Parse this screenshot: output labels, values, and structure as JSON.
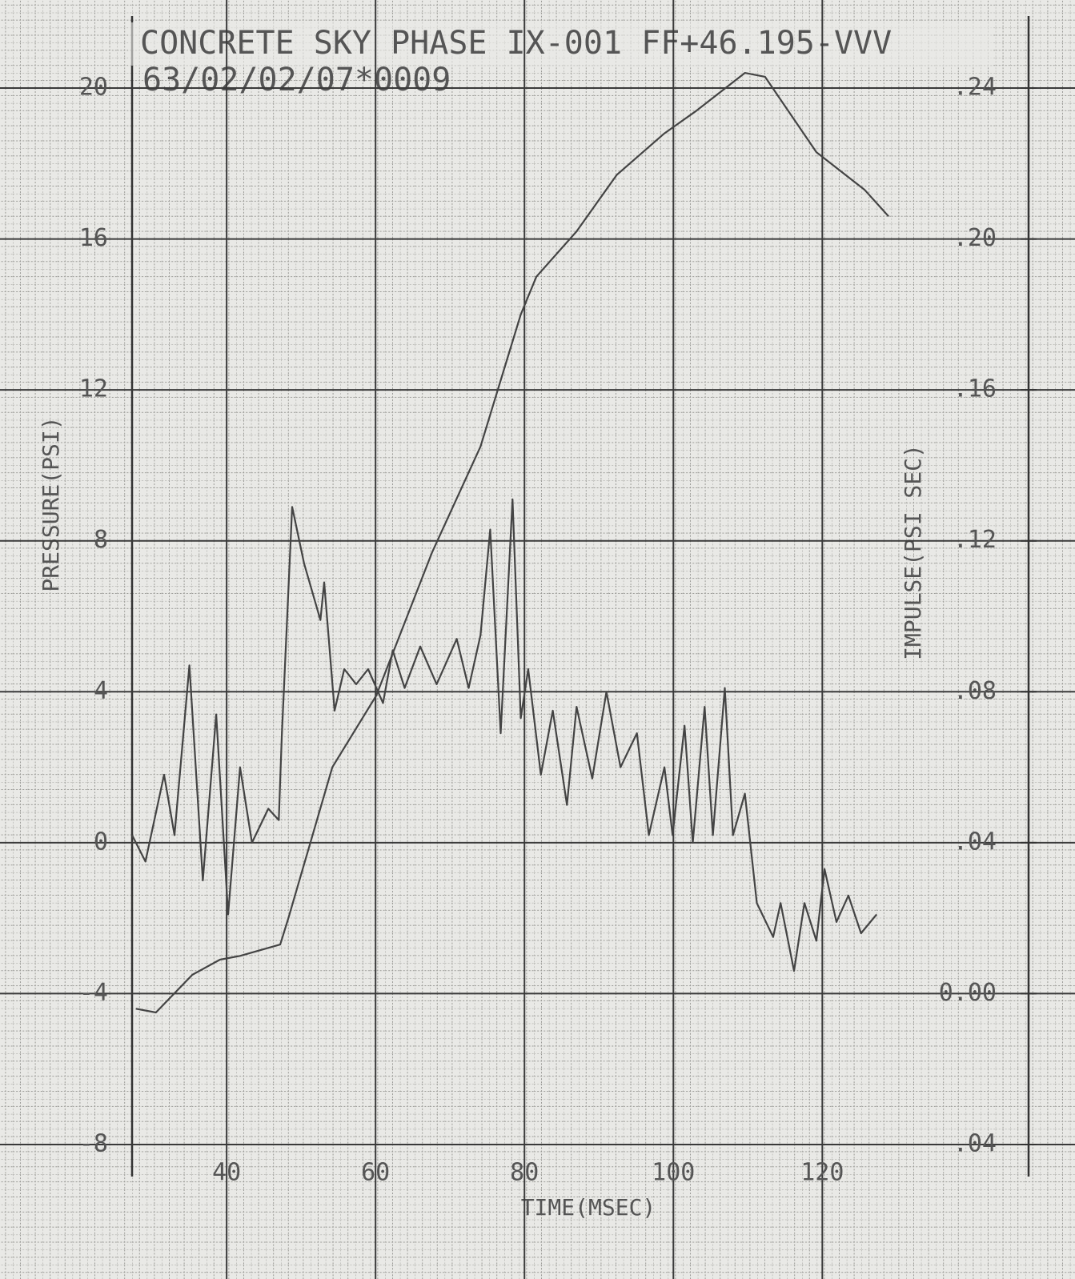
{
  "chart_data": {
    "type": "line",
    "title": "CONCRETE SKY PHASE IX-001 FF+46.195-VVV",
    "subtitle": "63/02/02/07*0009",
    "xlabel": "TIME(MSEC)",
    "ylabel": "PRESSURE(PSI)",
    "y2label": "IMPULSE(PSI SEC)",
    "xlim": [
      27.3,
      147.7
    ],
    "xticks": [
      40,
      60,
      80,
      100,
      120
    ],
    "ylim": [
      -8,
      20
    ],
    "yticks": [
      -8,
      -4,
      0,
      4,
      8,
      12,
      16,
      20
    ],
    "y2lim": [
      -0.04,
      0.24
    ],
    "y2ticks": [
      {
        "value": -0.04,
        "label": ".04"
      },
      {
        "value": 0,
        "label": "0.00"
      },
      {
        "value": 0.04,
        "label": ".04"
      },
      {
        "value": 0.08,
        "label": ".08"
      },
      {
        "value": 0.12,
        "label": ".12"
      },
      {
        "value": 0.16,
        "label": ".16"
      },
      {
        "value": 0.2,
        "label": ".20"
      },
      {
        "value": 0.24,
        "label": ".24"
      }
    ],
    "grid": true,
    "series": [
      {
        "color": "#444",
        "x": [
          27.3,
          29.1,
          31.6,
          33,
          35,
          36.8,
          38.6,
          40.2,
          41.8,
          43.4,
          45.6,
          47,
          47.4,
          48.8,
          50.4,
          52.6,
          53.1,
          54.5,
          55.8,
          57.4,
          59,
          61,
          62.3,
          63.9,
          66,
          68.2,
          70.9,
          72.5,
          74.1,
          75.4,
          76.8,
          78.4,
          79.5,
          80.5,
          82.2,
          83.8,
          85.7,
          87,
          89.1,
          91,
          92.9,
          95.1,
          96.7,
          98.8,
          99.9,
          101.5,
          102.6,
          104.2,
          105.3,
          106.9,
          108,
          109.6,
          111.2,
          113.4,
          114.4,
          116.2,
          117.6,
          119.2,
          120.3,
          121.9,
          123.5,
          125.2,
          127.3
        ],
        "values": [
          0.2,
          -0.5,
          1.8,
          0.2,
          4.7,
          -1.0,
          3.4,
          -1.9,
          2.0,
          0,
          0.9,
          0.6,
          2.8,
          8.9,
          7.4,
          5.9,
          6.9,
          3.5,
          4.6,
          4.2,
          4.6,
          3.7,
          5.1,
          4.1,
          5.2,
          4.2,
          5.4,
          4.1,
          5.5,
          8.3,
          2.9,
          9.1,
          3.3,
          4.6,
          1.8,
          3.5,
          1.0,
          3.6,
          1.7,
          4.0,
          2.0,
          2.9,
          0.2,
          2.0,
          0.2,
          3.1,
          0,
          3.6,
          0.2,
          4.1,
          0.2,
          1.3,
          -1.6,
          -2.5,
          -1.6,
          -3.4,
          -1.6,
          -2.6,
          -0.7,
          -2.1,
          -1.4,
          -2.4,
          -1.9
        ]
      },
      {
        "color": "#444",
        "axis": "y2",
        "x": [
          27.8,
          30.5,
          35.4,
          39.1,
          41.8,
          47.2,
          48.3,
          54.2,
          60.1,
          67.6,
          74.1,
          79.5,
          81.6,
          87,
          92.4,
          98.8,
          103.1,
          109.6,
          112.3,
          119.2,
          125.7,
          128.9
        ],
        "values": [
          -0.004,
          -0.005,
          0.005,
          0.009,
          0.01,
          0.013,
          0.02,
          0.06,
          0.079,
          0.117,
          0.145,
          0.18,
          0.19,
          0.202,
          0.217,
          0.228,
          0.234,
          0.244,
          0.243,
          0.223,
          0.213,
          0.206
        ]
      }
    ]
  }
}
